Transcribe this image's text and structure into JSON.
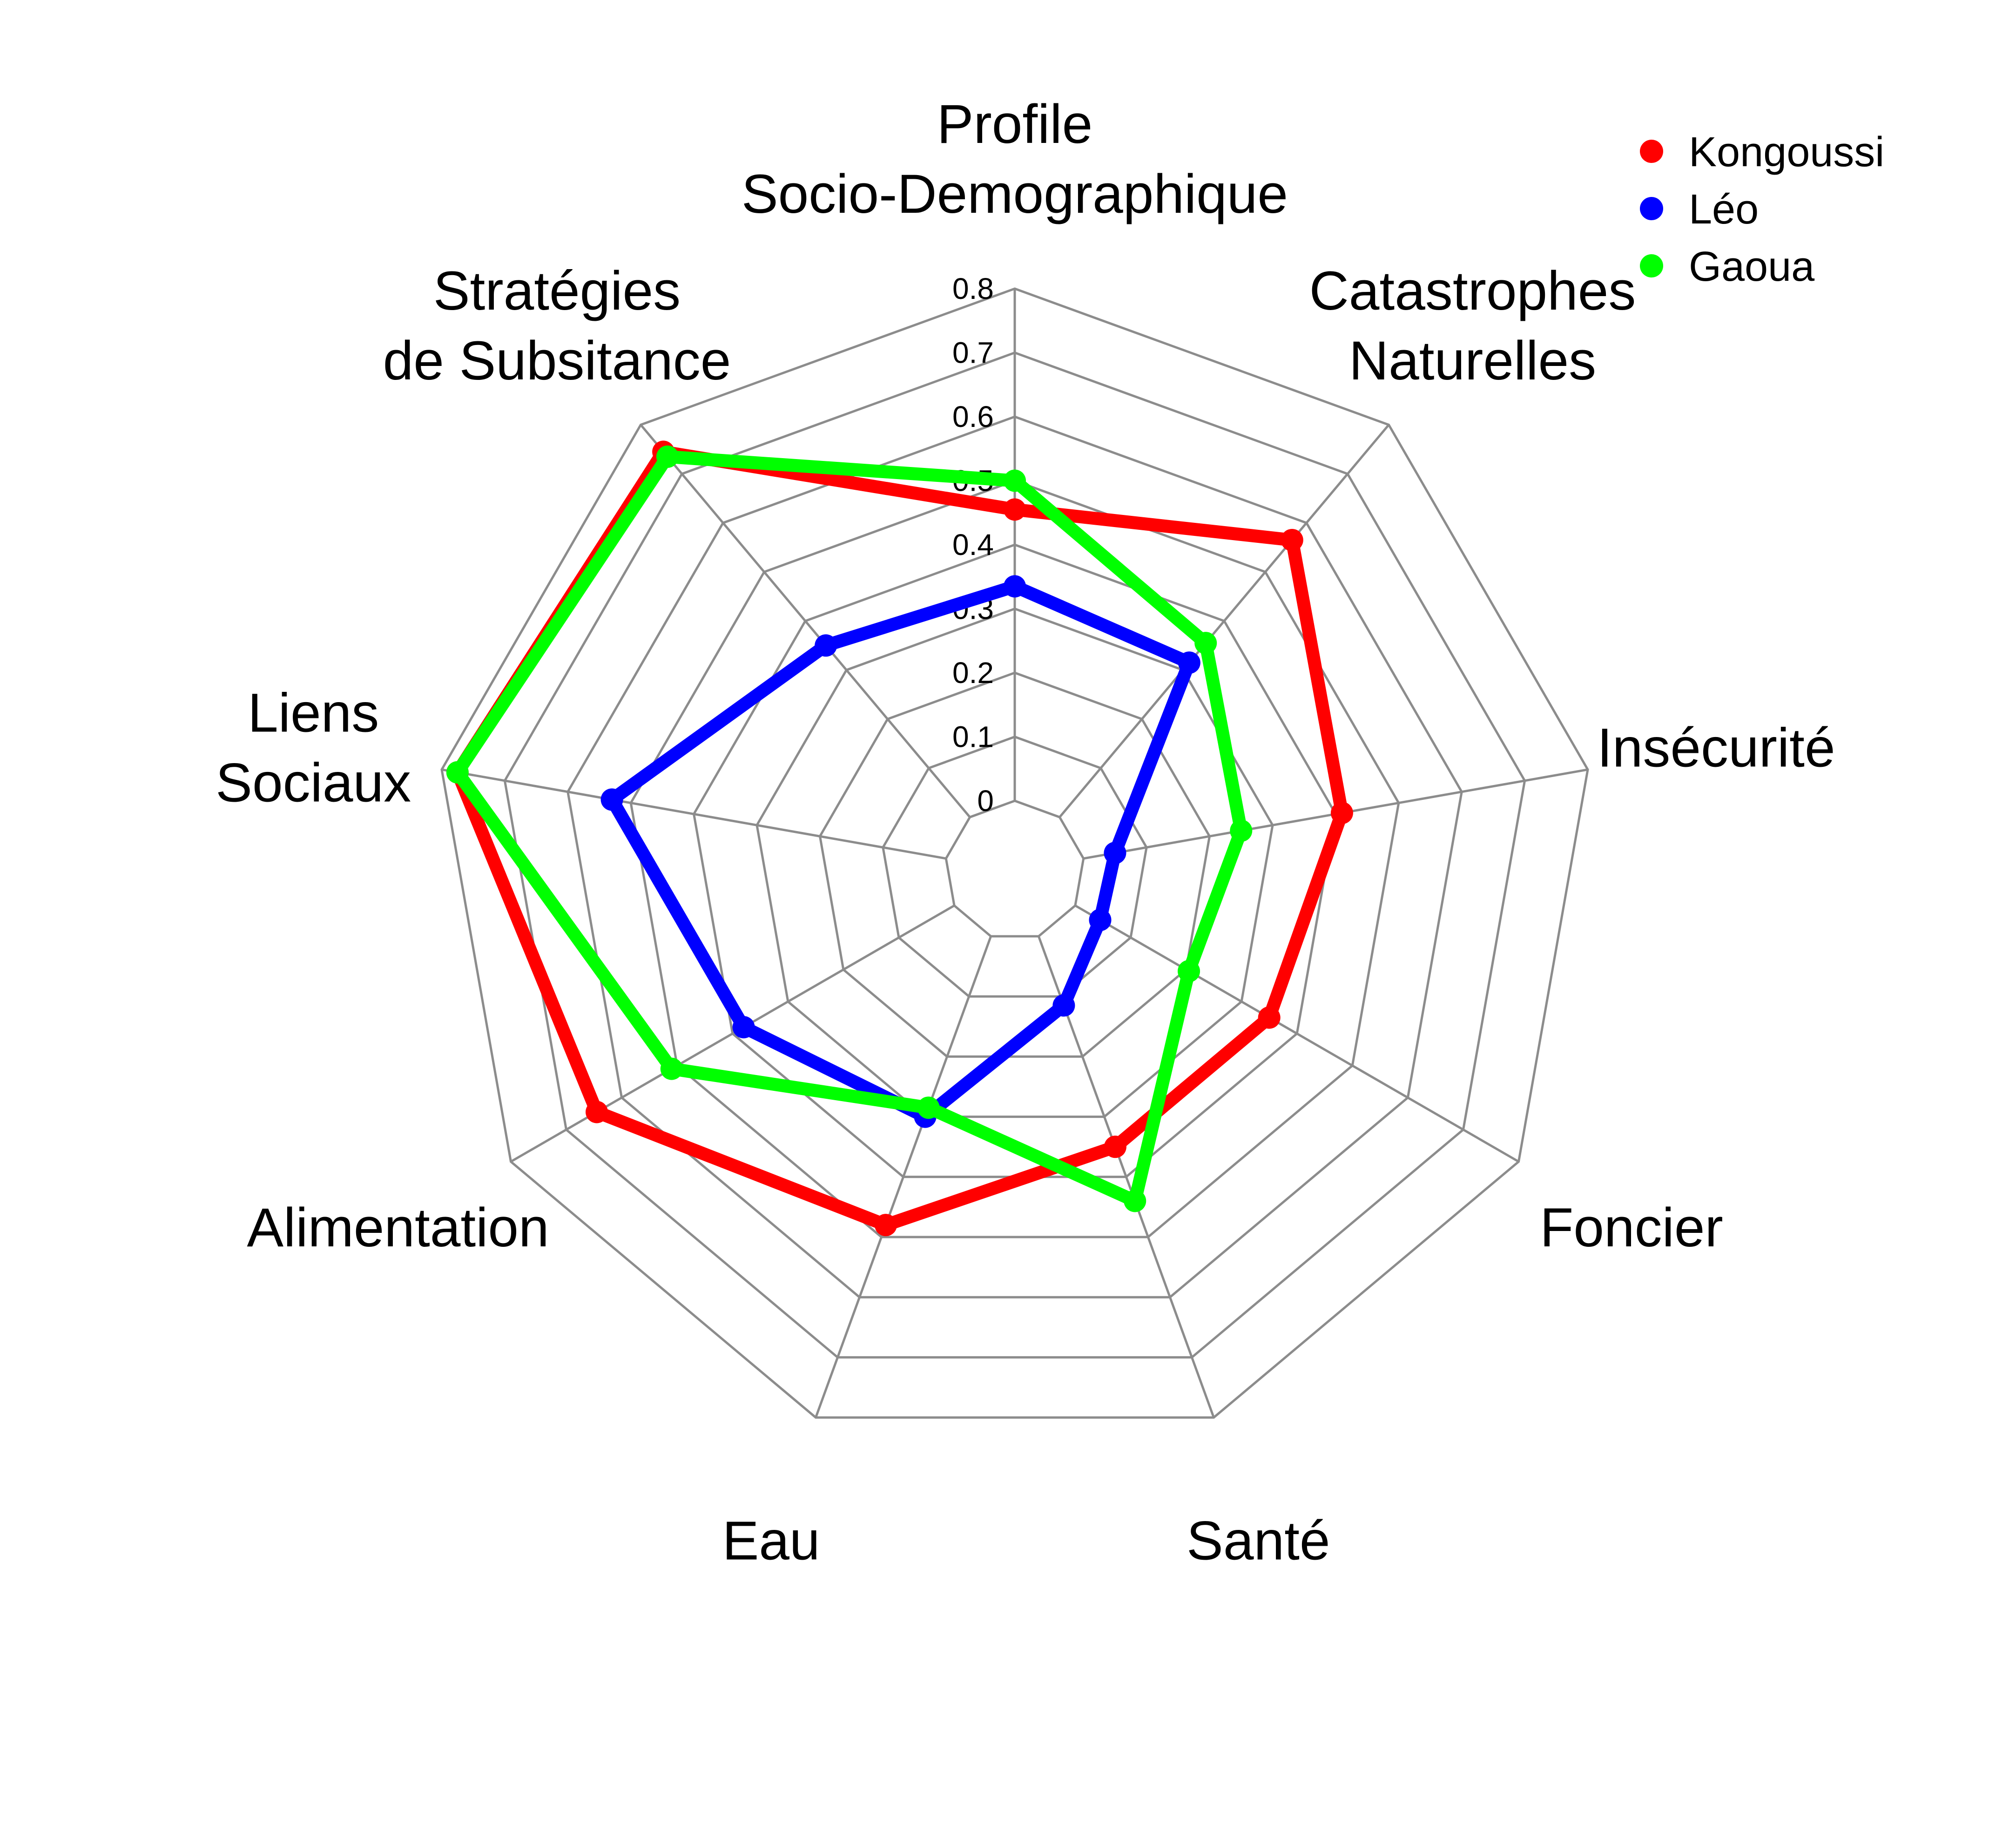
{
  "chart_data": {
    "type": "radar",
    "title": "",
    "axes": [
      {
        "label": [
          "Profile",
          "Socio-Demographique"
        ]
      },
      {
        "label": [
          "Catastrophes",
          "Naturelles"
        ]
      },
      {
        "label": [
          "Insécurité"
        ]
      },
      {
        "label": [
          "Foncier"
        ]
      },
      {
        "label": [
          "Santé"
        ]
      },
      {
        "label": [
          "Eau"
        ]
      },
      {
        "label": [
          "Alimentation"
        ]
      },
      {
        "label": [
          "Liens",
          "Sociaux"
        ]
      },
      {
        "label": [
          "Stratégies",
          "de Subsitance"
        ]
      }
    ],
    "range": [
      0,
      0.8
    ],
    "ticks": [
      "0",
      "0.1",
      "0.2",
      "0.3",
      "0.4",
      "0.5",
      "0.6",
      "0.7",
      "0.8"
    ],
    "tick_values": [
      0,
      0.1,
      0.2,
      0.3,
      0.4,
      0.5,
      0.6,
      0.7,
      0.8
    ],
    "grid": true,
    "legend_position": "top-right",
    "series": [
      {
        "name": "Kongoussi",
        "color": "#ff0000",
        "values": [
          0.455,
          0.565,
          0.41,
          0.35,
          0.35,
          0.48,
          0.645,
          0.775,
          0.745
        ]
      },
      {
        "name": "Léo",
        "color": "#0000ff",
        "values": [
          0.335,
          0.315,
          0.05,
          0.045,
          0.115,
          0.3,
          0.38,
          0.53,
          0.35
        ]
      },
      {
        "name": "Gaoua",
        "color": "#00ff00",
        "values": [
          0.5,
          0.355,
          0.25,
          0.205,
          0.44,
          0.285,
          0.51,
          0.775,
          0.735
        ]
      }
    ]
  }
}
